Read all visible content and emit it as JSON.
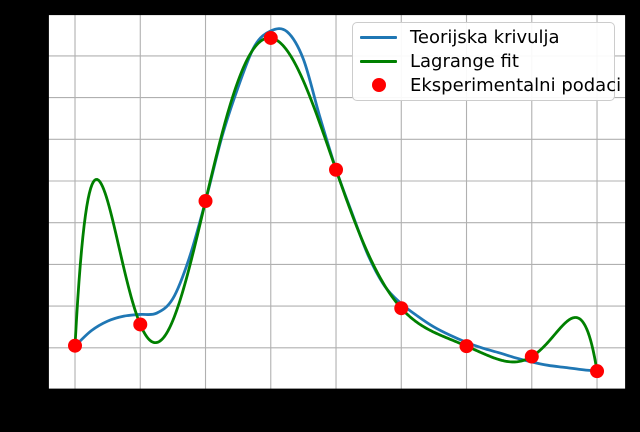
{
  "chart_data": {
    "type": "line",
    "title": "",
    "xlabel": "",
    "ylabel": "",
    "xlim": [
      -0.414,
      8.444
    ],
    "ylim": [
      0,
      0.9
    ],
    "x_ticks": [
      0,
      1,
      2,
      3,
      4,
      5,
      6,
      7,
      8
    ],
    "y_ticks": [
      0,
      0.1,
      0.2,
      0.3,
      0.4,
      0.5,
      0.6,
      0.7,
      0.8,
      0.9
    ],
    "grid": true,
    "tick_labels_visible": false,
    "figure_background": "#000000",
    "axes_background": "#ffffff",
    "grid_color": "#b0b0b0",
    "spine_color": "#000000",
    "series": [
      {
        "name": "Teorijska krivulja",
        "type": "line",
        "color": "#1f77b4",
        "linewidth": 2.8,
        "x": [
          0,
          0.25,
          0.5,
          0.75,
          1,
          1.25,
          1.5,
          1.75,
          2,
          2.25,
          2.5,
          2.75,
          3,
          3.25,
          3.5,
          3.75,
          4,
          4.25,
          4.5,
          4.75,
          5,
          5.25,
          5.5,
          5.75,
          6,
          6.25,
          6.5,
          6.75,
          7,
          7.25,
          7.5,
          7.75,
          8
        ],
        "y": [
          0.104,
          0.141,
          0.164,
          0.176,
          0.18,
          0.183,
          0.218,
          0.315,
          0.452,
          0.605,
          0.725,
          0.823,
          0.86,
          0.858,
          0.792,
          0.655,
          0.528,
          0.421,
          0.319,
          0.247,
          0.206,
          0.176,
          0.15,
          0.13,
          0.113,
          0.099,
          0.088,
          0.076,
          0.066,
          0.058,
          0.053,
          0.048,
          0.044
        ]
      },
      {
        "name": "Lagrange fit",
        "type": "line",
        "color": "#008000",
        "linewidth": 2.8,
        "method": "lagrange_interpolation_through_experimental_points",
        "sample_step": 0.02
      },
      {
        "name": "Eksperimentalni podaci",
        "type": "scatter",
        "color": "#ff0000",
        "marker_radius": 7,
        "x": [
          0,
          1,
          2,
          3,
          4,
          5,
          6,
          7,
          8
        ],
        "y": [
          0.105,
          0.156,
          0.452,
          0.843,
          0.527,
          0.195,
          0.104,
          0.079,
          0.044
        ]
      }
    ],
    "legend": {
      "location": "upper right",
      "border_color": "#cccccc",
      "entries": [
        {
          "label": "Teorijska krivulja",
          "marker": "line",
          "color": "#1f77b4"
        },
        {
          "label": "Lagrange fit",
          "marker": "line",
          "color": "#008000"
        },
        {
          "label": "Eksperimentalni podaci",
          "marker": "dot",
          "color": "#ff0000"
        }
      ]
    }
  }
}
